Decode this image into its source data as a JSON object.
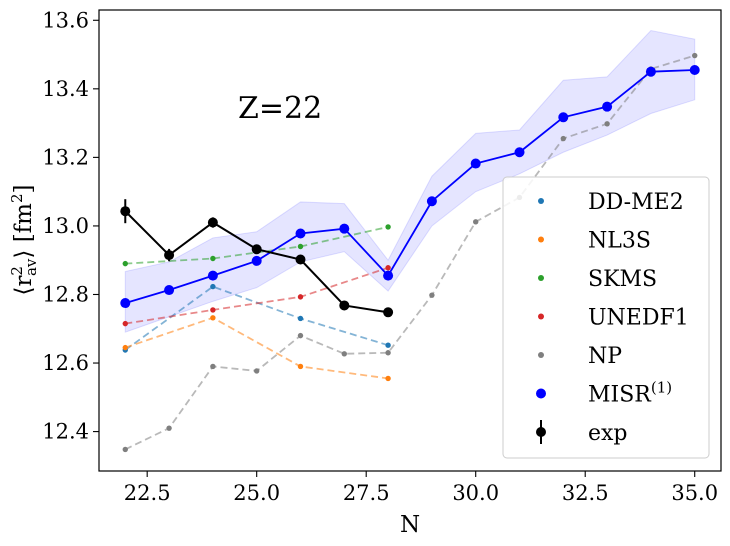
{
  "chart_data": {
    "type": "line",
    "annotation": "Z=22",
    "xlabel": "N",
    "ylabel": {
      "main": "⟨r",
      "sup": "2",
      "sub": "av",
      "rest": "⟩ [fm",
      "sup2": "2",
      "close": "]"
    },
    "xlim": [
      21.4,
      35.6
    ],
    "ylim": [
      12.285,
      13.63
    ],
    "xticks": [
      22.5,
      25.0,
      27.5,
      30.0,
      32.5,
      35.0
    ],
    "xtick_labels": [
      "22.5",
      "25.0",
      "27.5",
      "30.0",
      "32.5",
      "35.0"
    ],
    "yticks": [
      12.4,
      12.6,
      12.8,
      13.0,
      13.2,
      13.4,
      13.6
    ],
    "ytick_labels": [
      "12.4",
      "12.6",
      "12.8",
      "13.0",
      "13.2",
      "13.4",
      "13.6"
    ],
    "grid": false,
    "legend_position": "lower-right",
    "series": [
      {
        "name": "DD-ME2",
        "color": "#1f77b4",
        "style": "dashed-dots",
        "x": [
          22,
          24,
          26,
          28
        ],
        "y": [
          12.638,
          12.823,
          12.73,
          12.652
        ]
      },
      {
        "name": "NL3S",
        "color": "#ff7f0e",
        "style": "dashed-dots",
        "x": [
          22,
          24,
          26,
          28
        ],
        "y": [
          12.645,
          12.732,
          12.59,
          12.555
        ]
      },
      {
        "name": "SKMS",
        "color": "#2ca02c",
        "style": "dashed-dots",
        "x": [
          22,
          24,
          26,
          28
        ],
        "y": [
          12.89,
          12.905,
          12.94,
          12.997
        ]
      },
      {
        "name": "UNEDF1",
        "color": "#d62728",
        "style": "dashed-dots",
        "x": [
          22,
          24,
          26,
          28
        ],
        "y": [
          12.715,
          12.755,
          12.793,
          12.878
        ]
      },
      {
        "name": "NP",
        "color": "#7f7f7f",
        "style": "dashed-dots",
        "x": [
          22,
          23,
          24,
          25,
          26,
          27,
          28,
          29,
          30,
          31,
          32,
          33,
          34,
          35
        ],
        "y": [
          12.348,
          12.41,
          12.59,
          12.577,
          12.68,
          12.627,
          12.63,
          12.798,
          13.012,
          13.083,
          13.255,
          13.298,
          13.458,
          13.497
        ]
      },
      {
        "name": "MISR",
        "name_sup": "(1)",
        "color": "#0000ff",
        "style": "solid-markers",
        "x": [
          22,
          23,
          24,
          25,
          26,
          27,
          28,
          29,
          30,
          31,
          32,
          33,
          34,
          35
        ],
        "y": [
          12.775,
          12.813,
          12.855,
          12.898,
          12.978,
          12.992,
          12.855,
          13.072,
          13.182,
          13.215,
          13.317,
          13.348,
          13.45,
          13.455
        ],
        "band_upper": [
          12.867,
          12.895,
          12.965,
          12.983,
          13.07,
          13.065,
          12.9,
          13.145,
          13.27,
          13.28,
          13.425,
          13.435,
          13.57,
          13.545
        ],
        "band_lower": [
          12.69,
          12.735,
          12.78,
          12.82,
          12.895,
          12.925,
          12.81,
          13.0,
          13.1,
          13.152,
          13.215,
          13.265,
          13.328,
          13.368
        ]
      },
      {
        "name": "exp",
        "color": "#000000",
        "style": "errorbar",
        "x": [
          22,
          23,
          24,
          25,
          26,
          27,
          28
        ],
        "y": [
          13.043,
          12.915,
          13.01,
          12.932,
          12.902,
          12.768,
          12.748
        ],
        "err": [
          0.035,
          0.018,
          0.015,
          0.012,
          0.01,
          0.012,
          0.012
        ]
      }
    ]
  }
}
